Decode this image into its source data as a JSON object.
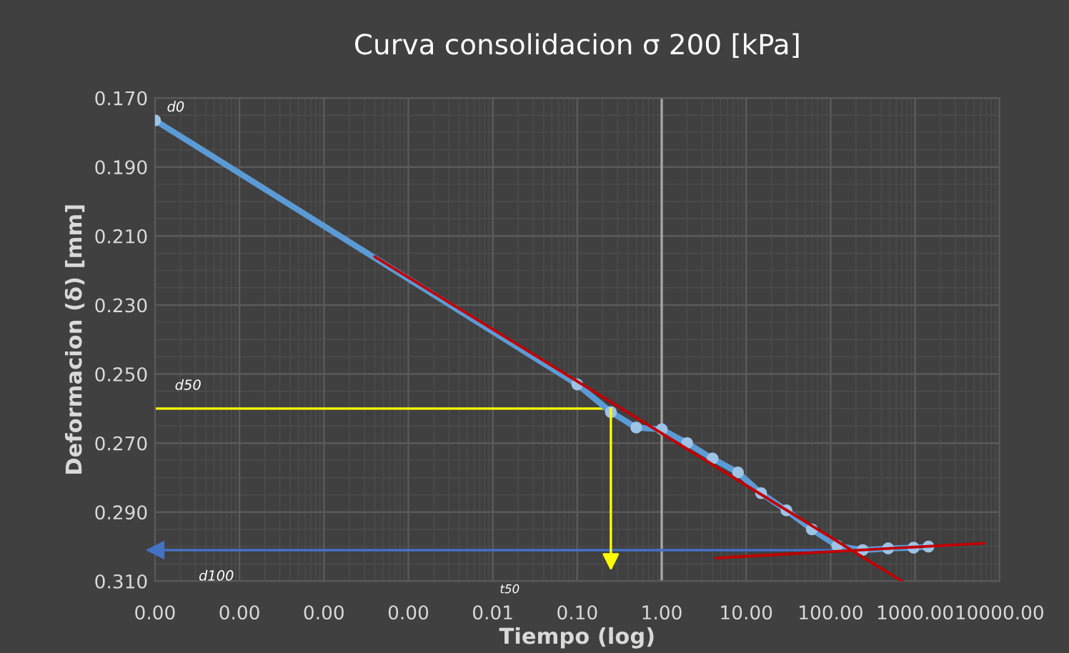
{
  "chart_data": {
    "type": "line",
    "title": "Curva consolidacion σ 200 [kPa]",
    "xlabel": "Tiempo (log)",
    "ylabel": "Deformacion (δ) [mm]",
    "log": "x",
    "grid": true,
    "legend": false,
    "xlim": [
      1e-06,
      10000
    ],
    "ylim": [
      0.31,
      0.17
    ],
    "xticks": [
      {
        "value": 1e-06,
        "label": "0.00"
      },
      {
        "value": 1e-05,
        "label": "0.00"
      },
      {
        "value": 0.0001,
        "label": "0.00"
      },
      {
        "value": 0.001,
        "label": "0.00"
      },
      {
        "value": 0.01,
        "label": "0.01"
      },
      {
        "value": 0.1,
        "label": "0.10"
      },
      {
        "value": 1,
        "label": "1.00"
      },
      {
        "value": 10,
        "label": "10.00"
      },
      {
        "value": 100,
        "label": "100.00"
      },
      {
        "value": 1000,
        "label": "1000.00"
      },
      {
        "value": 10000,
        "label": "10000.00"
      }
    ],
    "yticks": [
      {
        "value": 0.17,
        "label": "0.170"
      },
      {
        "value": 0.19,
        "label": "0.190"
      },
      {
        "value": 0.21,
        "label": "0.210"
      },
      {
        "value": 0.23,
        "label": "0.230"
      },
      {
        "value": 0.25,
        "label": "0.250"
      },
      {
        "value": 0.27,
        "label": "0.270"
      },
      {
        "value": 0.29,
        "label": "0.290"
      },
      {
        "value": 0.31,
        "label": "0.310"
      }
    ],
    "ref_lines": [
      {
        "axis": "x",
        "value": 1,
        "color": "#a6a6a6",
        "line_style": "solid"
      },
      {
        "axis": "y",
        "value": 0.26,
        "label": "d50",
        "color": "#ffff00",
        "line_style": "solid"
      },
      {
        "axis": "y",
        "value": 0.301,
        "label": "d100",
        "color": "#4472c4",
        "line_style": "solid"
      }
    ],
    "series": [
      {
        "color": "#5b9bd5",
        "marker": "circle",
        "x": [
          1e-06,
          0.1,
          0.25,
          0.5,
          1,
          2,
          4,
          8,
          15,
          30,
          60,
          120,
          240,
          480,
          960,
          1440
        ],
        "values": [
          0.1765,
          0.253,
          0.261,
          0.2655,
          0.266,
          0.27,
          0.2745,
          0.2785,
          0.2845,
          0.2895,
          0.295,
          0.2998,
          0.301,
          0.3005,
          0.3003,
          0.3
        ]
      },
      {
        "color": "#c00000",
        "marker": "none",
        "x": [
          0.0004,
          700
        ],
        "values": [
          0.216,
          0.31
        ]
      },
      {
        "color": "#c00000",
        "marker": "none",
        "x": [
          4.4,
          6600
        ],
        "values": [
          0.3033,
          0.299
        ]
      }
    ],
    "annotations": [
      {
        "text": "d0",
        "x": 1e-06,
        "y": 0.1765
      },
      "t50"
    ]
  }
}
